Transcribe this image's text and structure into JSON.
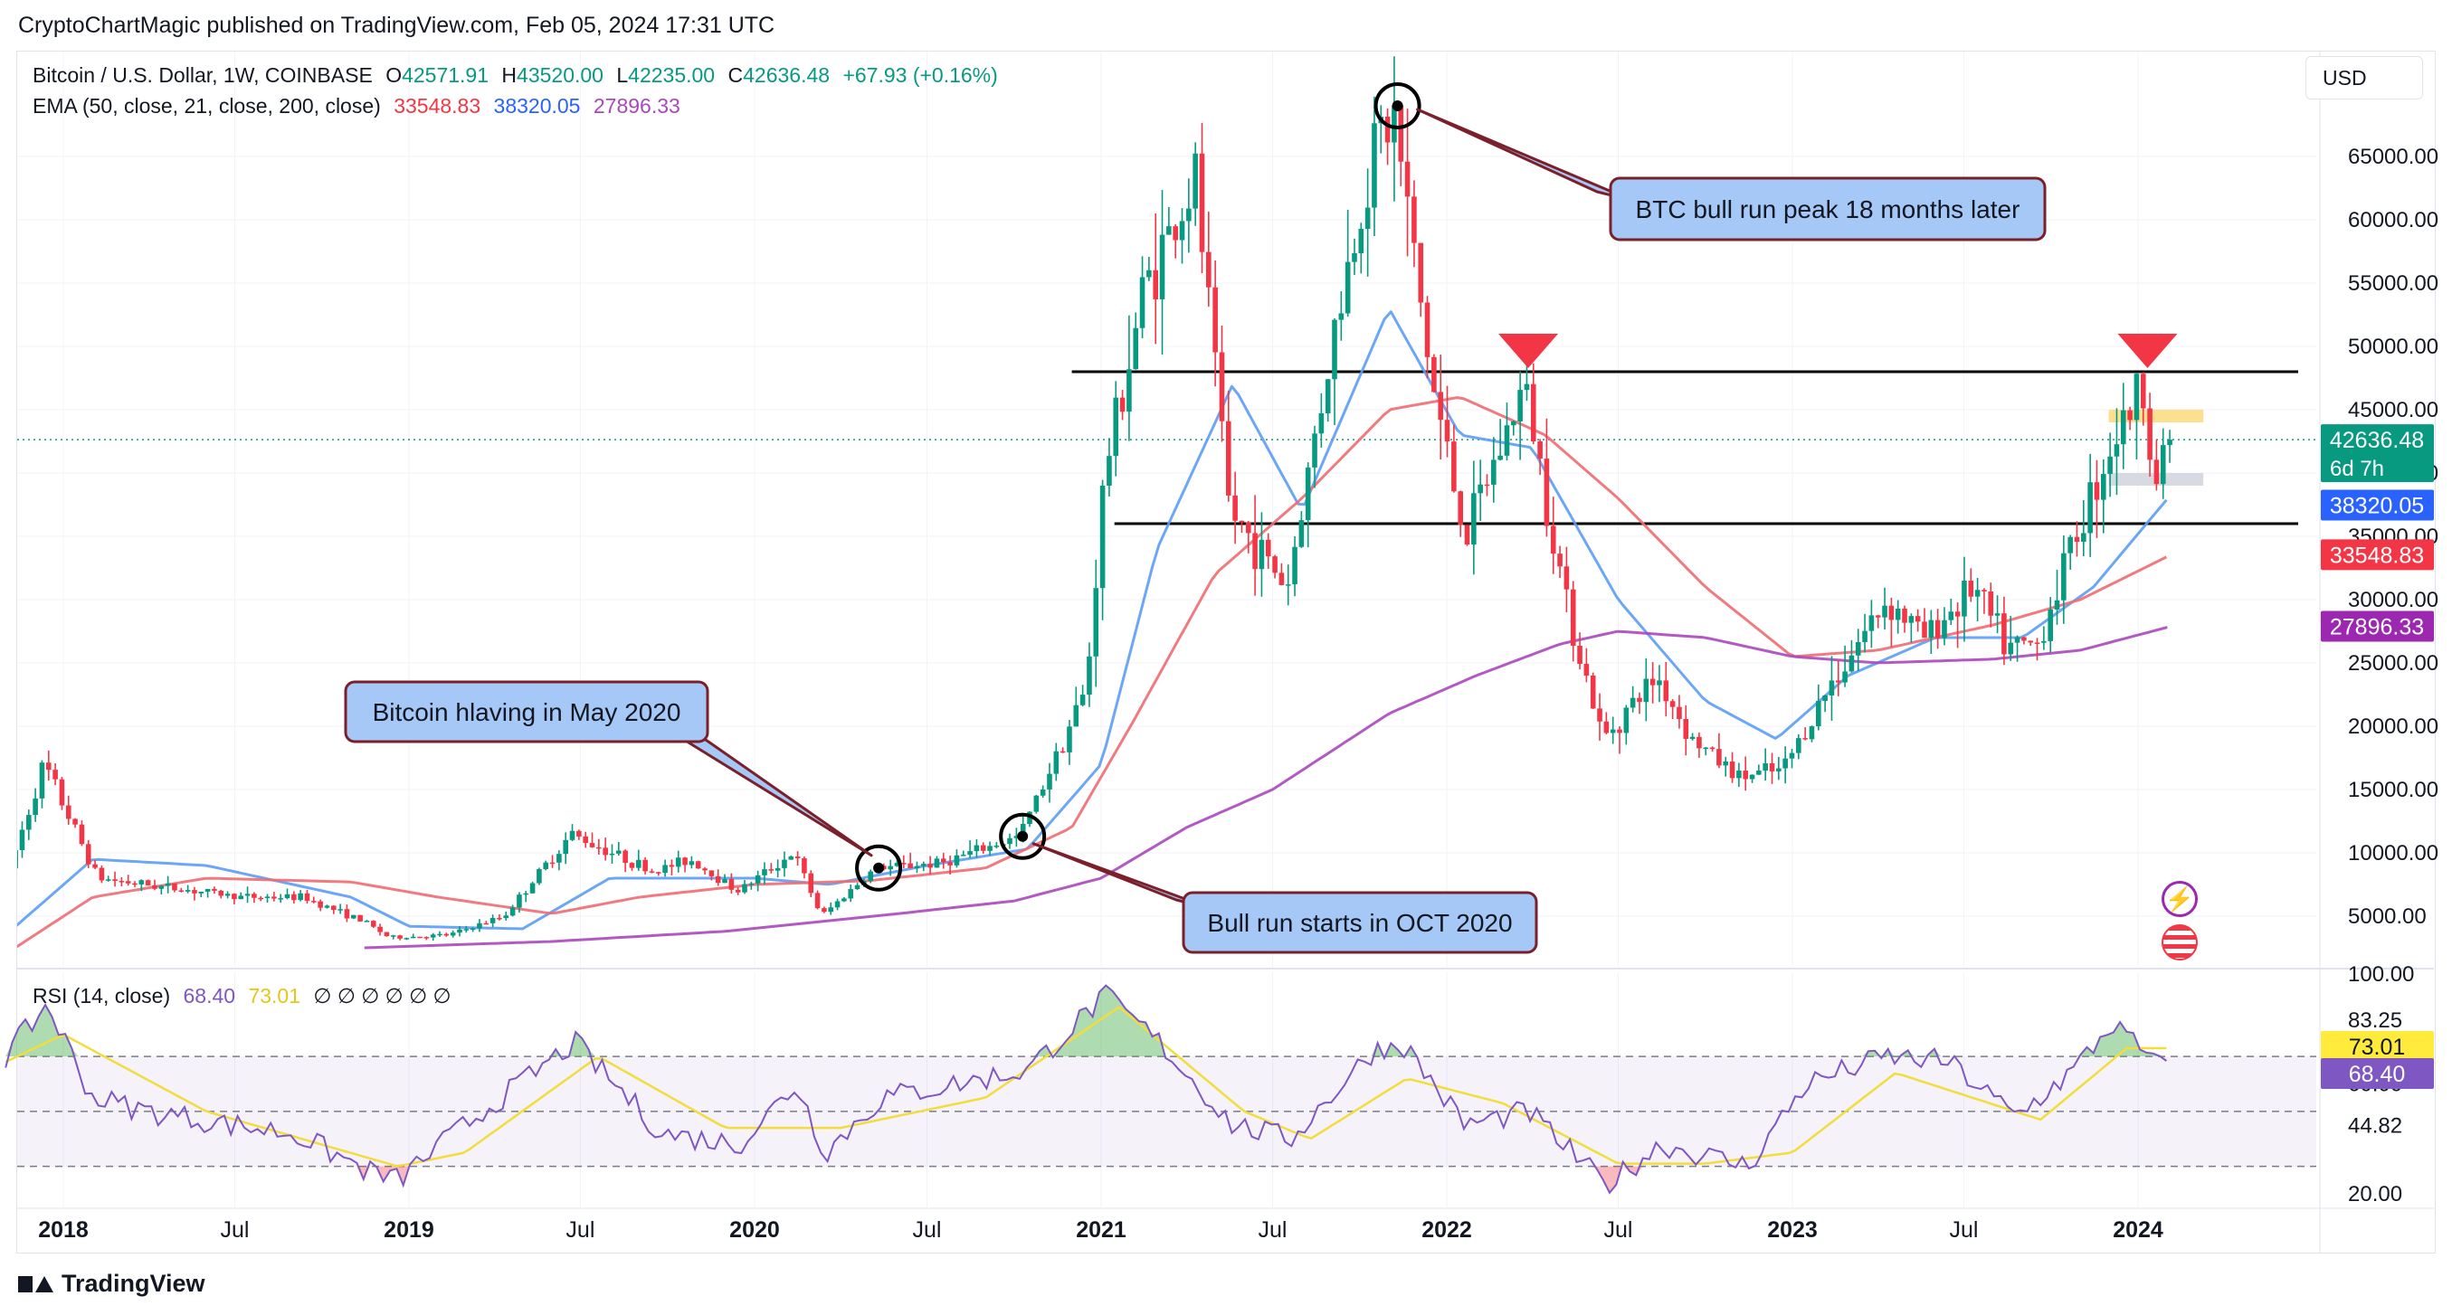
{
  "header": {
    "publisher_line": "CryptoChartMagic published on TradingView.com, Feb 05, 2024 17:31 UTC"
  },
  "legend": {
    "symbol": "Bitcoin / U.S. Dollar, 1W, COINBASE",
    "o_label": "O",
    "o": "42571.91",
    "h_label": "H",
    "h": "43520.00",
    "l_label": "L",
    "l": "42235.00",
    "c_label": "C",
    "c": "42636.48",
    "change": "+67.93 (+0.16%)",
    "ema_label": "EMA (50, close, 21, close, 200, close)",
    "ema50": "33548.83",
    "ema21": "38320.05",
    "ema200": "27896.33",
    "rsi_label": "RSI (14, close)",
    "rsi": "68.40",
    "rsi_ma": "73.01",
    "rsi_hidden": "∅ ∅ ∅ ∅ ∅ ∅"
  },
  "currency": "USD",
  "footer": {
    "brand": "TradingView"
  },
  "colors": {
    "up": "#089981",
    "down": "#f23645",
    "ema21": "#5b9cf6",
    "ema50": "#f06b72",
    "ema200": "#ab47bc",
    "rsi": "#7e57c2",
    "rsi_ma": "#f2dd3b",
    "box_fill": "#a6c8f7",
    "box_border": "#7b1f2a"
  },
  "badges": {
    "price": "42636.48",
    "countdown": "6d 7h",
    "ema21": "38320.05",
    "ema50": "33548.83",
    "ema200": "27896.33",
    "rsi_ma": "73.01",
    "rsi": "68.40"
  },
  "annotations": [
    {
      "text": "BTC bull run peak 18 months later"
    },
    {
      "text": "Bitcoin hlaving in May 2020"
    },
    {
      "text": "Bull run starts in OCT 2020"
    }
  ],
  "chart_data": [
    {
      "type": "line",
      "title": "Bitcoin / U.S. Dollar, 1W, COINBASE",
      "xlabel": "",
      "ylabel": "",
      "x_ticks": [
        "2018",
        "Jul",
        "2019",
        "Jul",
        "2020",
        "Jul",
        "2021",
        "Jul",
        "2022",
        "Jul",
        "2023",
        "Jul",
        "2024"
      ],
      "y_ticks": [
        5000,
        10000,
        15000,
        20000,
        25000,
        30000,
        35000,
        40000,
        45000,
        50000,
        55000,
        60000,
        65000
      ],
      "ylim": [
        1000,
        71500
      ],
      "price_path": {
        "dates": [
          "2017-11-01",
          "2017-12-15",
          "2018-02-10",
          "2018-04-01",
          "2018-07-15",
          "2018-09-15",
          "2018-11-20",
          "2018-12-15",
          "2019-02-15",
          "2019-04-15",
          "2019-06-25",
          "2019-09-20",
          "2019-10-28",
          "2019-12-18",
          "2020-02-15",
          "2020-03-15",
          "2020-05-11",
          "2020-07-20",
          "2020-10-10",
          "2020-12-20",
          "2021-01-08",
          "2021-02-20",
          "2021-04-14",
          "2021-05-20",
          "2021-07-20",
          "2021-09-07",
          "2021-10-20",
          "2021-11-10",
          "2021-12-20",
          "2022-01-24",
          "2022-03-28",
          "2022-05-10",
          "2022-06-18",
          "2022-08-14",
          "2022-09-20",
          "2022-11-09",
          "2022-12-25",
          "2023-02-15",
          "2023-04-14",
          "2023-05-25",
          "2023-07-14",
          "2023-08-20",
          "2023-09-20",
          "2023-10-25",
          "2023-12-05",
          "2024-01-11",
          "2024-01-23",
          "2024-02-05"
        ],
        "values": [
          7000,
          17000,
          8000,
          7500,
          6500,
          6500,
          4500,
          3300,
          3500,
          5000,
          11500,
          8500,
          9500,
          7000,
          10000,
          5000,
          8800,
          9200,
          11300,
          23000,
          40000,
          55000,
          63000,
          37000,
          31000,
          51000,
          66000,
          68000,
          47000,
          35000,
          47000,
          30000,
          19000,
          24000,
          19000,
          16000,
          16500,
          23500,
          30000,
          27000,
          31000,
          26000,
          26500,
          34000,
          42000,
          47000,
          39000,
          42636.48
        ]
      },
      "series": [
        {
          "name": "EMA 21",
          "dates": [
            "2017-11-01",
            "2018-02-01",
            "2018-06-01",
            "2018-11-01",
            "2019-01-01",
            "2019-05-01",
            "2019-08-01",
            "2020-01-01",
            "2020-03-20",
            "2020-07-01",
            "2020-10-15",
            "2021-01-01",
            "2021-03-01",
            "2021-05-20",
            "2021-08-01",
            "2021-11-01",
            "2022-01-15",
            "2022-04-01",
            "2022-07-01",
            "2022-10-01",
            "2022-12-15",
            "2023-03-01",
            "2023-06-01",
            "2023-09-01",
            "2023-11-15",
            "2024-02-05"
          ],
          "values": [
            3500,
            9500,
            9000,
            6500,
            4200,
            4000,
            8000,
            8000,
            7500,
            9000,
            10300,
            17000,
            34000,
            47000,
            37000,
            53000,
            43000,
            42000,
            30000,
            22000,
            19000,
            24000,
            27000,
            27000,
            31000,
            38320.05
          ]
        },
        {
          "name": "EMA 50",
          "dates": [
            "2017-11-01",
            "2018-02-01",
            "2018-06-01",
            "2018-11-01",
            "2019-02-01",
            "2019-06-01",
            "2019-09-01",
            "2020-01-01",
            "2020-05-01",
            "2020-09-01",
            "2020-12-01",
            "2021-02-01",
            "2021-05-01",
            "2021-08-01",
            "2021-11-01",
            "2022-01-15",
            "2022-04-15",
            "2022-07-01",
            "2022-10-01",
            "2023-01-01",
            "2023-04-01",
            "2023-08-01",
            "2023-11-01",
            "2024-02-05"
          ],
          "values": [
            2000,
            6500,
            8000,
            7700,
            6500,
            5200,
            6500,
            7500,
            7800,
            8800,
            12000,
            20000,
            32000,
            38000,
            45000,
            46000,
            43000,
            38000,
            31000,
            25500,
            26000,
            28000,
            30000,
            33548.83
          ]
        },
        {
          "name": "EMA 200",
          "dates": [
            "2018-11-15",
            "2019-06-01",
            "2019-12-01",
            "2020-06-01",
            "2020-10-01",
            "2021-01-01",
            "2021-04-01",
            "2021-07-01",
            "2021-11-01",
            "2022-02-01",
            "2022-05-01",
            "2022-07-01",
            "2022-10-01",
            "2023-01-01",
            "2023-04-01",
            "2023-08-01",
            "2023-11-01",
            "2024-02-05"
          ],
          "values": [
            2500,
            3000,
            3800,
            5200,
            6200,
            8000,
            12000,
            15000,
            21000,
            24000,
            26500,
            27500,
            27000,
            25500,
            25000,
            25300,
            26000,
            27896.33
          ]
        }
      ],
      "horizontal_levels": [
        48000,
        36000
      ],
      "zones": [
        {
          "from": 44000,
          "to": 45000,
          "color": "#fdd97c"
        },
        {
          "from": 39000,
          "to": 40000,
          "color": "#d1d4dc"
        }
      ],
      "markers": [
        {
          "date": "2022-03-28",
          "value": 48000,
          "shape": "down-triangle"
        },
        {
          "date": "2024-01-11",
          "value": 48000,
          "shape": "down-triangle"
        }
      ],
      "circled_points": [
        {
          "date": "2021-11-10",
          "value": 69000
        },
        {
          "date": "2020-05-11",
          "value": 8800
        },
        {
          "date": "2020-10-10",
          "value": 11300
        }
      ]
    },
    {
      "type": "line",
      "title": "RSI (14, close)",
      "y_ticks": [
        20.0,
        44.82,
        60.0,
        83.25,
        100.0
      ],
      "ylim": [
        17,
        101
      ],
      "bands": {
        "upper": 70,
        "middle": 50,
        "lower": 30
      },
      "series": [
        {
          "name": "RSI",
          "dates": [
            "2017-11-01",
            "2017-12-15",
            "2018-02-01",
            "2018-04-01",
            "2018-07-01",
            "2018-09-01",
            "2018-11-20",
            "2018-12-20",
            "2019-03-01",
            "2019-06-25",
            "2019-09-25",
            "2019-12-15",
            "2020-02-15",
            "2020-03-15",
            "2020-05-15",
            "2020-08-01",
            "2020-10-15",
            "2021-01-05",
            "2021-03-01",
            "2021-05-20",
            "2021-07-20",
            "2021-10-15",
            "2021-11-15",
            "2022-01-20",
            "2022-03-28",
            "2022-06-18",
            "2022-08-15",
            "2022-11-15",
            "2023-01-15",
            "2023-04-10",
            "2023-06-15",
            "2023-08-25",
            "2023-10-25",
            "2023-12-05",
            "2024-01-23",
            "2024-02-05"
          ],
          "values": [
            70,
            89,
            55,
            50,
            45,
            42,
            28,
            25,
            45,
            75,
            42,
            38,
            60,
            35,
            55,
            60,
            65,
            92,
            76,
            45,
            40,
            72,
            75,
            45,
            50,
            23,
            38,
            30,
            60,
            70,
            68,
            48,
            65,
            82,
            66,
            68.4
          ]
        },
        {
          "name": "RSI MA",
          "dates": [
            "2017-11-01",
            "2018-01-01",
            "2018-06-01",
            "2018-12-20",
            "2019-03-01",
            "2019-07-20",
            "2019-12-01",
            "2020-04-01",
            "2020-09-01",
            "2021-01-20",
            "2021-06-01",
            "2021-08-10",
            "2021-11-20",
            "2022-03-01",
            "2022-07-01",
            "2022-10-01",
            "2023-01-01",
            "2023-04-20",
            "2023-09-20",
            "2023-12-20",
            "2024-02-05"
          ],
          "values": [
            68,
            78,
            50,
            30,
            35,
            70,
            44,
            44,
            55,
            88,
            50,
            40,
            62,
            53,
            31,
            31,
            35,
            64,
            47,
            73,
            73.01
          ]
        }
      ]
    }
  ]
}
